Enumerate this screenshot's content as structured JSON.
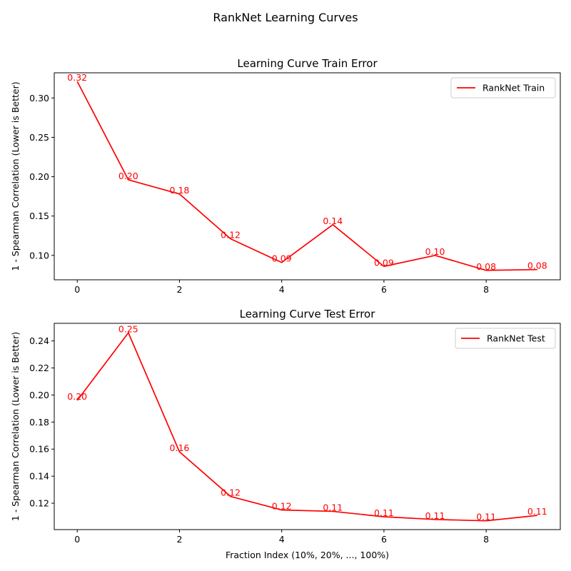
{
  "suptitle": "RankNet Learning Curves",
  "colors": {
    "line": "#ff0000",
    "axis": "#000000",
    "legend_border": "#cccccc"
  },
  "chart_data": [
    {
      "type": "line",
      "title": "Learning Curve Train Error",
      "xlabel": "",
      "ylabel": "1 - Spearman Correlation (Lower is Better)",
      "x": [
        0,
        1,
        2,
        3,
        4,
        5,
        6,
        7,
        8,
        9
      ],
      "xlim": [
        -0.45,
        9.45
      ],
      "ylim": [
        0.069,
        0.332
      ],
      "xticks": [
        0,
        2,
        4,
        6,
        8
      ],
      "yticks": [
        0.1,
        0.15,
        0.2,
        0.25,
        0.3
      ],
      "ytick_labels": [
        "0.10",
        "0.15",
        "0.20",
        "0.25",
        "0.30"
      ],
      "grid": false,
      "legend_position": "top-right",
      "series": [
        {
          "name": "RankNet Train",
          "values": [
            0.321,
            0.196,
            0.178,
            0.121,
            0.091,
            0.139,
            0.086,
            0.1,
            0.081,
            0.082
          ],
          "labels": [
            "0.32",
            "0.20",
            "0.18",
            "0.12",
            "0.09",
            "0.14",
            "0.09",
            "0.10",
            "0.08",
            "0.08"
          ]
        }
      ]
    },
    {
      "type": "line",
      "title": "Learning Curve Test Error",
      "xlabel": "Fraction Index (10%, 20%, ..., 100%)",
      "ylabel": "1 - Spearman Correlation (Lower is Better)",
      "x": [
        0,
        1,
        2,
        3,
        4,
        5,
        6,
        7,
        8,
        9
      ],
      "xlim": [
        -0.45,
        9.45
      ],
      "ylim": [
        0.1005,
        0.253
      ],
      "xticks": [
        0,
        2,
        4,
        6,
        8
      ],
      "yticks": [
        0.12,
        0.14,
        0.16,
        0.18,
        0.2,
        0.22,
        0.24
      ],
      "ytick_labels": [
        "0.12",
        "0.14",
        "0.16",
        "0.18",
        "0.20",
        "0.22",
        "0.24"
      ],
      "grid": false,
      "legend_position": "top-right",
      "series": [
        {
          "name": "RankNet Test",
          "values": [
            0.196,
            0.246,
            0.158,
            0.125,
            0.115,
            0.114,
            0.11,
            0.108,
            0.107,
            0.111
          ],
          "labels": [
            "0.20",
            "0.25",
            "0.16",
            "0.12",
            "0.12",
            "0.11",
            "0.11",
            "0.11",
            "0.11",
            "0.11"
          ]
        }
      ]
    }
  ]
}
